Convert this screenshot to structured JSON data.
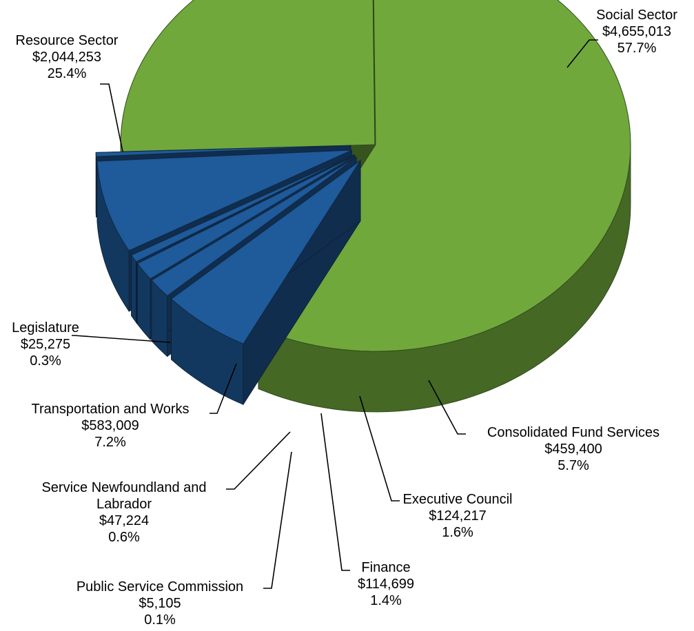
{
  "chart_data": {
    "type": "pie",
    "title": "",
    "three_d": true,
    "exploded": [
      "Consolidated Fund Services",
      "Executive Council",
      "Finance",
      "Public Service Commission",
      "Service Newfoundland and Labrador",
      "Transportation and Works",
      "Legislature"
    ],
    "slices": [
      {
        "name": "Social Sector",
        "value_label": "$4,655,013",
        "percent_label": "57.7%",
        "value": 4655013,
        "percent": 57.7,
        "color": "#70a83c"
      },
      {
        "name": "Consolidated Fund Services",
        "value_label": "$459,400",
        "percent_label": "5.7%",
        "value": 459400,
        "percent": 5.7,
        "color": "#1f5a9a"
      },
      {
        "name": "Executive Council",
        "value_label": "$124,217",
        "percent_label": "1.6%",
        "value": 124217,
        "percent": 1.6,
        "color": "#1f5a9a"
      },
      {
        "name": "Finance",
        "value_label": "$114,699",
        "percent_label": "1.4%",
        "value": 114699,
        "percent": 1.4,
        "color": "#1f5a9a"
      },
      {
        "name": "Public Service Commission",
        "value_label": "$5,105",
        "percent_label": "0.1%",
        "value": 5105,
        "percent": 0.1,
        "color": "#1f5a9a"
      },
      {
        "name": "Service Newfoundland and Labrador",
        "value_label": "$47,224",
        "percent_label": "0.6%",
        "value": 47224,
        "percent": 0.6,
        "color": "#1f5a9a"
      },
      {
        "name": "Transportation and Works",
        "value_label": "$583,009",
        "percent_label": "7.2%",
        "value": 583009,
        "percent": 7.2,
        "color": "#1f5a9a"
      },
      {
        "name": "Legislature",
        "value_label": "$25,275",
        "percent_label": "0.3%",
        "value": 25275,
        "percent": 0.3,
        "color": "#1f5a9a"
      },
      {
        "name": "Resource Sector",
        "value_label": "$2,044,253",
        "percent_label": "25.4%",
        "value": 2044253,
        "percent": 25.4,
        "color": "#70a83c"
      }
    ]
  }
}
